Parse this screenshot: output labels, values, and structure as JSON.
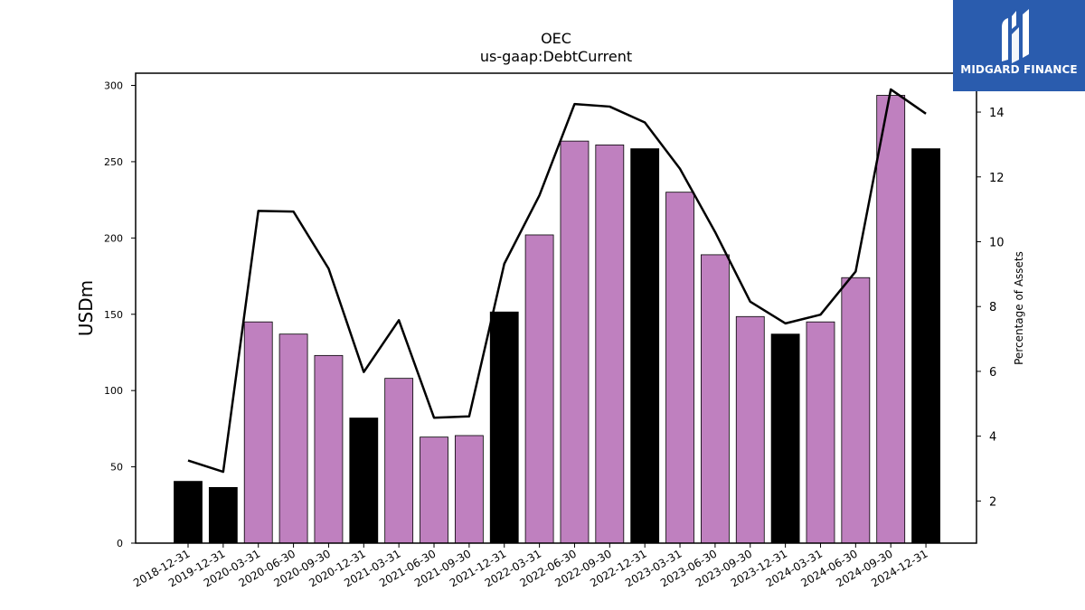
{
  "chart_data": {
    "type": "bar",
    "title": "OEC",
    "subtitle": "us-gaap:DebtCurrent",
    "ylabel": "USDm",
    "y2label": "Percentage of Assets",
    "ylim": [
      0,
      308
    ],
    "y2lim": [
      0.7,
      15.2
    ],
    "yticks": [
      0,
      50,
      100,
      150,
      200,
      250,
      300
    ],
    "y2ticks": [
      2,
      4,
      6,
      8,
      10,
      12,
      14
    ],
    "categories": [
      "2018-12-31",
      "2019-12-31",
      "2020-03-31",
      "2020-06-30",
      "2020-09-30",
      "2020-12-31",
      "2021-03-31",
      "2021-06-30",
      "2021-09-30",
      "2021-12-31",
      "2022-03-31",
      "2022-06-30",
      "2022-09-30",
      "2022-12-31",
      "2023-03-31",
      "2023-06-30",
      "2023-09-30",
      "2023-12-31",
      "2024-03-31",
      "2024-06-30",
      "2024-09-30",
      "2024-12-31"
    ],
    "series": [
      {
        "kind": "bar",
        "values": [
          40.5,
          36.5,
          145,
          137,
          123,
          82,
          108,
          69.5,
          70.5,
          151.5,
          202,
          263.5,
          261,
          258.5,
          230,
          189,
          148.5,
          137,
          145,
          174,
          293.5,
          258.5
        ],
        "colors": [
          "#000000",
          "#000000",
          "#bf80bf",
          "#bf80bf",
          "#bf80bf",
          "#000000",
          "#bf80bf",
          "#bf80bf",
          "#bf80bf",
          "#000000",
          "#bf80bf",
          "#bf80bf",
          "#bf80bf",
          "#000000",
          "#bf80bf",
          "#bf80bf",
          "#bf80bf",
          "#000000",
          "#bf80bf",
          "#bf80bf",
          "#bf80bf",
          "#000000"
        ]
      },
      {
        "kind": "line",
        "axis": "right",
        "color": "#000000",
        "values": [
          3.25,
          2.9,
          10.95,
          10.93,
          9.17,
          5.98,
          7.58,
          4.57,
          4.61,
          9.32,
          11.43,
          14.25,
          14.17,
          13.68,
          12.25,
          10.3,
          8.15,
          7.48,
          7.75,
          9.08,
          14.7,
          13.95
        ]
      }
    ],
    "grid": false
  },
  "logo": {
    "text": "MIDGARD FINANCE",
    "background": "#2a5cae"
  }
}
